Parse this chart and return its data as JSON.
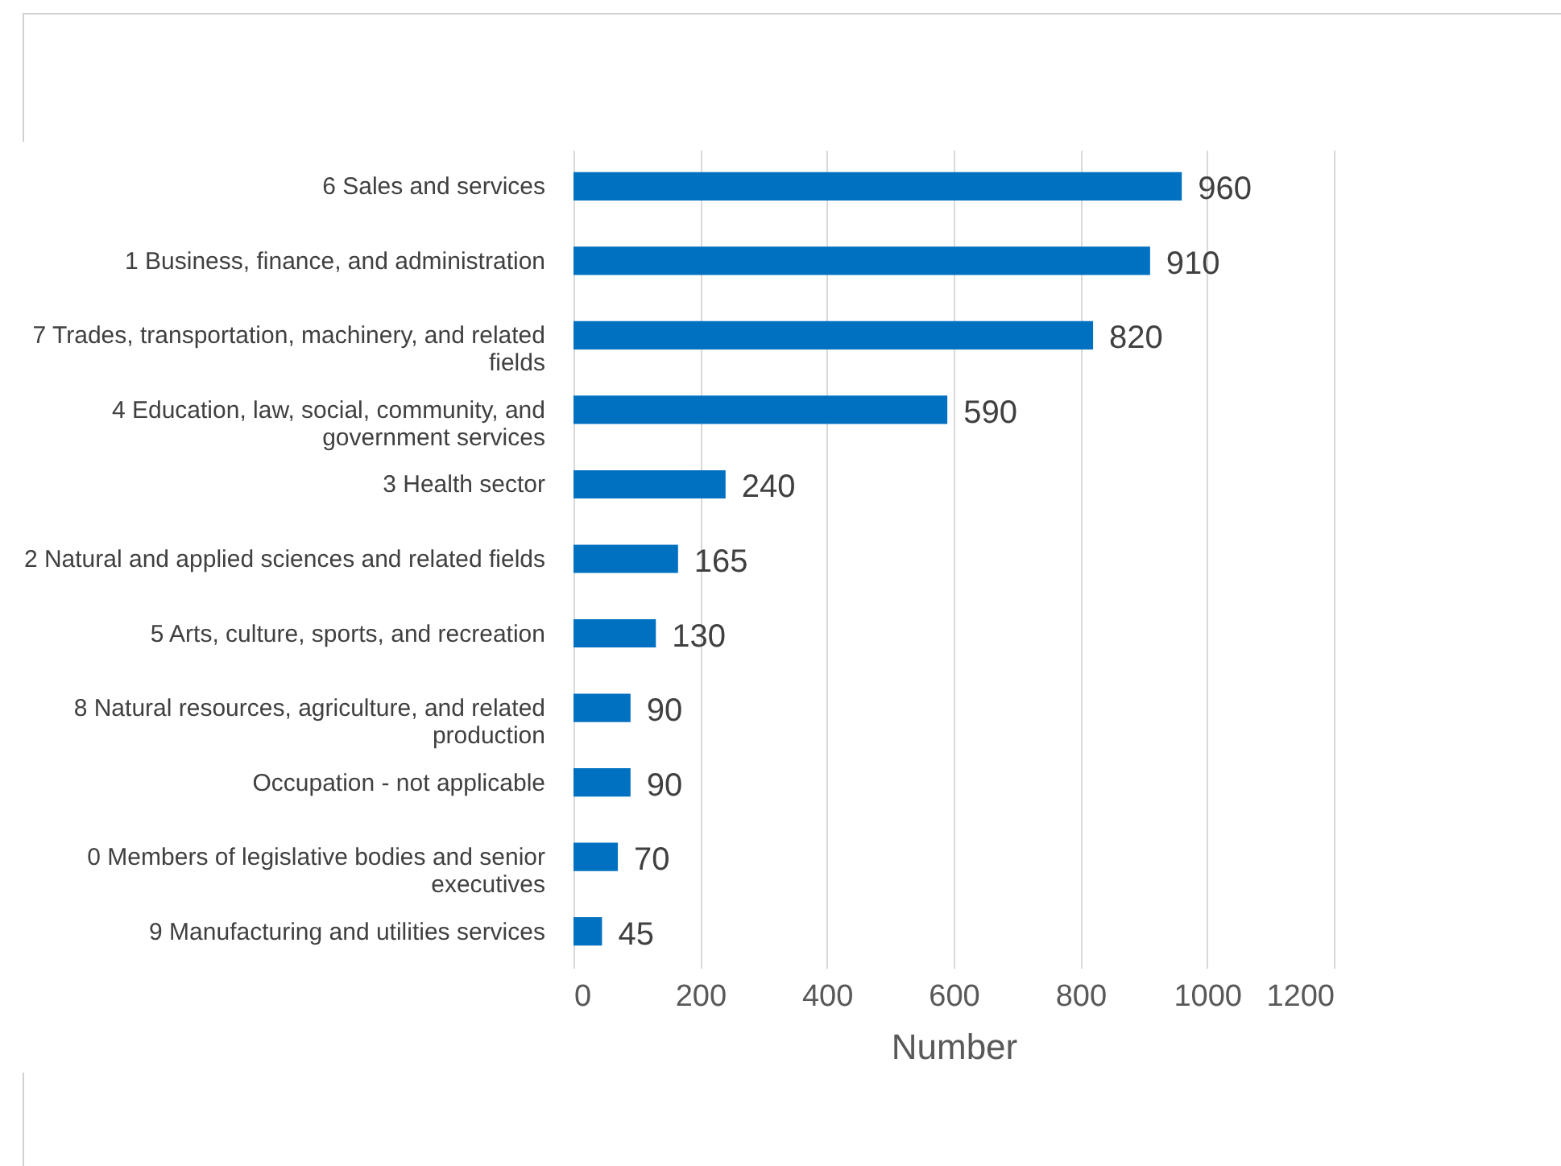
{
  "chart_data": {
    "type": "bar",
    "orientation": "horizontal",
    "xlabel": "Number",
    "categories": [
      "6 Sales and services",
      "1 Business, finance, and administration",
      "7 Trades, transportation, machinery, and related fields",
      "4 Education, law, social, community, and government services",
      "3 Health sector",
      "2 Natural and applied sciences and related fields",
      "5 Arts, culture, sports, and recreation",
      "8 Natural resources, agriculture, and related production",
      "Occupation - not applicable",
      "0 Members of legislative bodies and senior executives",
      "9 Manufacturing and utilities services"
    ],
    "values": [
      960,
      910,
      820,
      590,
      240,
      165,
      130,
      90,
      90,
      70,
      45
    ],
    "color": "#0070c0",
    "xlim": [
      0,
      1200
    ],
    "xticks": [
      0,
      200,
      400,
      600,
      800,
      1000,
      1200
    ],
    "grid": "x",
    "data_labels": true
  }
}
